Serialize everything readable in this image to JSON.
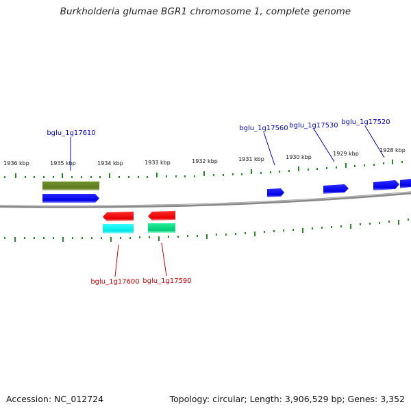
{
  "title": "Burkholderia glumae BGR1 chromosome 1, complete genome",
  "footer": {
    "accession": "Accession: NC_012724",
    "summary": "Topology: circular; Length: 3,906,529 bp; Genes: 3,352"
  },
  "ruler": {
    "labels": [
      "1936 kbp",
      "1935 kbp",
      "1934 kbp",
      "1933 kbp",
      "1932 kbp",
      "1931 kbp",
      "1930 kbp",
      "1929 kbp",
      "1928 kbp"
    ]
  },
  "genes": {
    "forward": [
      {
        "label": "bglu_1g17610",
        "color": "#0000cc"
      },
      {
        "label": "bglu_1g17560",
        "color": "#0000cc"
      },
      {
        "label": "bglu_1g17530",
        "color": "#0000cc"
      },
      {
        "label": "bglu_1g17520",
        "color": "#0000cc"
      }
    ],
    "reverse": [
      {
        "label": "bglu_1g17600",
        "color": "#cc0000"
      },
      {
        "label": "bglu_1g17590",
        "color": "#cc0000"
      }
    ]
  },
  "colors": {
    "forward_gene": "#0000ff",
    "reverse_gene": "#ff0000",
    "tick": "#228b22",
    "backbone": "#888888",
    "olive_feature": "#6b8e23",
    "cyan_feature": "#00ffff",
    "green_feature": "#00e08a"
  }
}
